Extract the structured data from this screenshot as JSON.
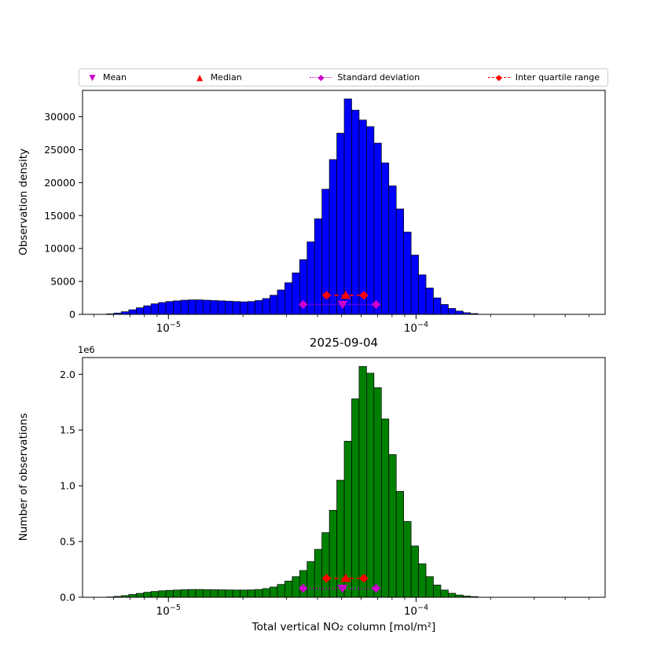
{
  "legend": {
    "items": [
      {
        "label": "Mean",
        "marker": "triangle-down",
        "color": "#cc00cc",
        "line": "none"
      },
      {
        "label": "Median",
        "marker": "triangle-up",
        "color": "#ff0000",
        "line": "none"
      },
      {
        "label": "Standard deviation",
        "marker": "diamond",
        "color": "#cc00cc",
        "line": "dotted"
      },
      {
        "label": "Inter quartile range",
        "marker": "diamond",
        "color": "#ff0000",
        "line": "dashed"
      }
    ]
  },
  "chart_data": [
    {
      "type": "bar",
      "name": "observation-density-histogram",
      "title": "",
      "ylabel": "Observation density",
      "xlabel": "",
      "xscale": "log",
      "xlim": [
        4.5e-06,
        0.00058
      ],
      "ylim": [
        0,
        34000
      ],
      "bar_color": "#0000ff",
      "bar_edge_color": "#000000",
      "bin_log10_start": -5.25,
      "bin_log10_width": 0.03,
      "values": [
        80,
        200,
        400,
        700,
        1000,
        1300,
        1600,
        1800,
        1950,
        2050,
        2150,
        2200,
        2200,
        2150,
        2100,
        2050,
        2000,
        1950,
        1900,
        1950,
        2100,
        2400,
        2900,
        3700,
        4800,
        6300,
        8300,
        11000,
        14500,
        19000,
        23500,
        27500,
        32700,
        31000,
        29500,
        28500,
        26000,
        23000,
        19500,
        16000,
        12500,
        9000,
        6000,
        4000,
        2500,
        1500,
        900,
        500,
        250,
        120
      ],
      "yticks": [
        {
          "value": 0,
          "label": "0"
        },
        {
          "value": 5000,
          "label": "5000"
        },
        {
          "value": 10000,
          "label": "10000"
        },
        {
          "value": 15000,
          "label": "15000"
        },
        {
          "value": 20000,
          "label": "20000"
        },
        {
          "value": 25000,
          "label": "25000"
        },
        {
          "value": 30000,
          "label": "30000"
        }
      ],
      "xticks": [
        {
          "value": 1e-05,
          "base": "10",
          "exp": "−5"
        },
        {
          "value": 0.0001,
          "base": "10",
          "exp": "−4"
        }
      ],
      "stats": {
        "mean": 5.05e-05,
        "median": 5.2e-05,
        "std_low": 3.5e-05,
        "std_high": 6.9e-05,
        "std_y": 1500,
        "iqr_low": 4.35e-05,
        "iqr_high": 6.15e-05,
        "iqr_y": 2900
      },
      "marker_colors": {
        "mean_std": "#cc00cc",
        "median_iqr": "#ff0000"
      },
      "y_offset_label": ""
    },
    {
      "type": "bar",
      "name": "number-of-observations-histogram",
      "title": "2025-09-04",
      "ylabel": "Number of observations",
      "xlabel": "Total vertical NO₂ column [mol/m²]",
      "xscale": "log",
      "xlim": [
        4.5e-06,
        0.00058
      ],
      "ylim": [
        0,
        2150000
      ],
      "bar_color": "#008000",
      "bar_edge_color": "#000000",
      "bin_log10_start": -5.25,
      "bin_log10_width": 0.03,
      "values": [
        3000,
        8000,
        15000,
        25000,
        35000,
        45000,
        52000,
        58000,
        62000,
        65000,
        68000,
        70000,
        70000,
        69000,
        68000,
        67000,
        66000,
        65000,
        65000,
        66000,
        70000,
        78000,
        92000,
        115000,
        145000,
        185000,
        240000,
        320000,
        430000,
        580000,
        780000,
        1050000,
        1400000,
        1780000,
        2070000,
        2010000,
        1880000,
        1600000,
        1280000,
        950000,
        680000,
        460000,
        300000,
        185000,
        110000,
        65000,
        36000,
        20000,
        11000,
        6000
      ],
      "yticks": [
        {
          "value": 0,
          "label": "0.0"
        },
        {
          "value": 500000,
          "label": "0.5"
        },
        {
          "value": 1000000,
          "label": "1.0"
        },
        {
          "value": 1500000,
          "label": "1.5"
        },
        {
          "value": 2000000,
          "label": "2.0"
        }
      ],
      "xticks": [
        {
          "value": 1e-05,
          "base": "10",
          "exp": "−5"
        },
        {
          "value": 0.0001,
          "base": "10",
          "exp": "−4"
        }
      ],
      "stats": {
        "mean": 5.05e-05,
        "median": 5.2e-05,
        "std_low": 3.5e-05,
        "std_high": 6.9e-05,
        "std_y": 80000,
        "iqr_low": 4.35e-05,
        "iqr_high": 6.15e-05,
        "iqr_y": 170000
      },
      "marker_colors": {
        "mean_std": "#cc00cc",
        "median_iqr": "#ff0000"
      },
      "y_offset_label": "1e6"
    }
  ]
}
